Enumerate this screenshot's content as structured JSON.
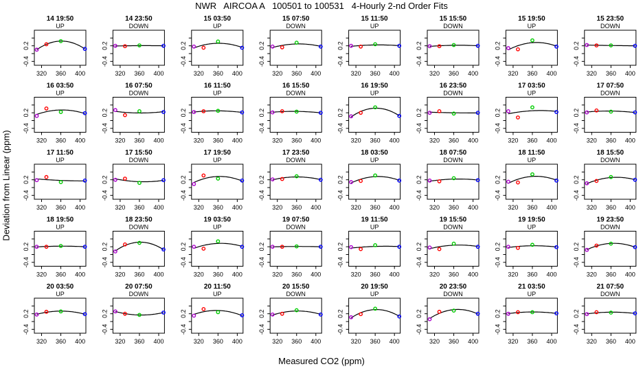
{
  "title": "NWR   AIRCOA A   100501 to 100531   4-Hourly 2-nd Order Fits",
  "xlabel": "Measured CO2 (ppm)",
  "ylabel": "Deviation from Linear (ppm)",
  "colors": {
    "low": "#ff0000",
    "mid": "#00cc00",
    "high": "#0000ff",
    "first": "#aa00cc",
    "curve": "#000000",
    "frame": "#000000"
  },
  "chart_data": {
    "type": "scatter",
    "grid": false,
    "layout": {
      "rows": 5,
      "cols": 8
    },
    "xlim": [
      305,
      412
    ],
    "ylim": [
      -0.5,
      0.4
    ],
    "xticks": [
      320,
      360,
      400
    ],
    "yticks": [
      -0.4,
      -0.2,
      0.0,
      0.2
    ],
    "xtick_labels": [
      "320",
      "360",
      "400"
    ],
    "ytick_labels": [
      "-0.4",
      "",
      "0.2"
    ],
    "standard_x": [
      310,
      330,
      360,
      410
    ],
    "panels": [
      {
        "title": "14 19:50",
        "mode": "UP",
        "y": [
          -0.1,
          0.04,
          0.12,
          -0.08
        ],
        "fit": [
          -0.5,
          0.1
        ]
      },
      {
        "title": "14 23:50",
        "mode": "DOWN",
        "y": [
          0.0,
          -0.01,
          0.01,
          0.0
        ],
        "fit": [
          0.0,
          0.0
        ]
      },
      {
        "title": "15 03:50",
        "mode": "UP",
        "y": [
          -0.02,
          -0.05,
          0.11,
          -0.05
        ],
        "fit": [
          -0.2,
          0.1
        ]
      },
      {
        "title": "15 07:50",
        "mode": "DOWN",
        "y": [
          -0.02,
          -0.04,
          0.08,
          -0.02
        ],
        "fit": [
          -0.2,
          0.1
        ]
      },
      {
        "title": "15 11:50",
        "mode": "UP",
        "y": [
          0.0,
          -0.02,
          0.04,
          0.0
        ],
        "fit": [
          0.0,
          0.0
        ]
      },
      {
        "title": "15 15:50",
        "mode": "DOWN",
        "y": [
          -0.01,
          -0.01,
          0.02,
          0.0
        ],
        "fit": [
          0.0,
          0.0
        ]
      },
      {
        "title": "15 19:50",
        "mode": "UP",
        "y": [
          -0.06,
          -0.09,
          0.14,
          -0.02
        ],
        "fit": [
          -0.2,
          0.2
        ]
      },
      {
        "title": "15 23:50",
        "mode": "DOWN",
        "y": [
          0.02,
          0.01,
          0.01,
          0.0
        ],
        "fit": [
          0.0,
          0.0
        ]
      },
      {
        "title": "16 03:50",
        "mode": "UP",
        "y": [
          -0.08,
          0.11,
          0.02,
          -0.01
        ],
        "fit": [
          -0.1,
          0.1
        ]
      },
      {
        "title": "16 07:50",
        "mode": "DOWN",
        "y": [
          0.07,
          -0.06,
          0.04,
          0.02
        ],
        "fit": [
          0.0,
          0.0
        ]
      },
      {
        "title": "16 11:50",
        "mode": "UP",
        "y": [
          0.02,
          0.04,
          0.05,
          0.01
        ],
        "fit": [
          0.0,
          0.0
        ]
      },
      {
        "title": "16 15:50",
        "mode": "DOWN",
        "y": [
          0.01,
          0.04,
          0.03,
          0.0
        ],
        "fit": [
          0.0,
          0.0
        ]
      },
      {
        "title": "16 19:50",
        "mode": "UP",
        "y": [
          -0.09,
          0.0,
          0.14,
          -0.08
        ],
        "fit": [
          -0.5,
          0.1
        ]
      },
      {
        "title": "16 23:50",
        "mode": "DOWN",
        "y": [
          0.0,
          0.04,
          -0.02,
          0.0
        ],
        "fit": [
          0.0,
          0.0
        ]
      },
      {
        "title": "17 03:50",
        "mode": "UP",
        "y": [
          0.04,
          -0.12,
          0.14,
          0.02
        ],
        "fit": [
          0.0,
          0.0
        ]
      },
      {
        "title": "17 07:50",
        "mode": "DOWN",
        "y": [
          0.01,
          0.06,
          0.03,
          0.01
        ],
        "fit": [
          0.0,
          0.0
        ]
      },
      {
        "title": "17 11:50",
        "mode": "UP",
        "y": [
          -0.01,
          0.07,
          -0.06,
          -0.02
        ],
        "fit": [
          0.0,
          0.0
        ]
      },
      {
        "title": "17 15:50",
        "mode": "DOWN",
        "y": [
          0.0,
          0.03,
          -0.08,
          -0.01
        ],
        "fit": [
          0.0,
          0.0
        ]
      },
      {
        "title": "17 19:50",
        "mode": "UP",
        "y": [
          -0.11,
          0.11,
          0.03,
          -0.02
        ],
        "fit": [
          -0.2,
          0.1
        ]
      },
      {
        "title": "17 23:50",
        "mode": "DOWN",
        "y": [
          0.01,
          0.02,
          0.09,
          0.0
        ],
        "fit": [
          -0.2,
          0.1
        ]
      },
      {
        "title": "18 03:50",
        "mode": "UP",
        "y": [
          -0.06,
          -0.03,
          0.11,
          -0.02
        ],
        "fit": [
          -0.2,
          0.1
        ]
      },
      {
        "title": "18 07:50",
        "mode": "DOWN",
        "y": [
          -0.02,
          -0.04,
          0.04,
          -0.01
        ],
        "fit": [
          0.0,
          0.0
        ]
      },
      {
        "title": "18 11:50",
        "mode": "UP",
        "y": [
          -0.05,
          -0.07,
          0.14,
          -0.02
        ],
        "fit": [
          -0.5,
          0.1
        ]
      },
      {
        "title": "18 15:50",
        "mode": "DOWN",
        "y": [
          -0.09,
          -0.03,
          0.07,
          0.0
        ],
        "fit": [
          -0.3,
          0.1
        ]
      },
      {
        "title": "18 19:50",
        "mode": "UP",
        "y": [
          0.0,
          0.0,
          0.02,
          0.0
        ],
        "fit": [
          0.0,
          0.0
        ]
      },
      {
        "title": "18 23:50",
        "mode": "DOWN",
        "y": [
          -0.12,
          0.06,
          0.1,
          -0.07
        ],
        "fit": [
          -0.5,
          0.1
        ]
      },
      {
        "title": "19 03:50",
        "mode": "UP",
        "y": [
          0.0,
          -0.05,
          0.14,
          0.0
        ],
        "fit": [
          -0.2,
          0.1
        ]
      },
      {
        "title": "19 07:50",
        "mode": "DOWN",
        "y": [
          0.0,
          0.0,
          0.01,
          0.0
        ],
        "fit": [
          0.0,
          0.0
        ]
      },
      {
        "title": "19 11:50",
        "mode": "UP",
        "y": [
          -0.01,
          -0.06,
          0.04,
          0.0
        ],
        "fit": [
          0.0,
          0.0
        ]
      },
      {
        "title": "19 15:50",
        "mode": "DOWN",
        "y": [
          -0.02,
          -0.06,
          0.08,
          0.0
        ],
        "fit": [
          0.0,
          0.0
        ]
      },
      {
        "title": "19 19:50",
        "mode": "UP",
        "y": [
          0.0,
          -0.03,
          0.05,
          -0.01
        ],
        "fit": [
          -0.2,
          0.1
        ]
      },
      {
        "title": "19 23:50",
        "mode": "DOWN",
        "y": [
          -0.08,
          0.03,
          0.08,
          -0.01
        ],
        "fit": [
          -0.2,
          0.1
        ]
      },
      {
        "title": "20 03:50",
        "mode": "UP",
        "y": [
          -0.02,
          0.05,
          0.06,
          -0.01
        ],
        "fit": [
          0.0,
          0.0
        ]
      },
      {
        "title": "20 07:50",
        "mode": "DOWN",
        "y": [
          0.06,
          0.0,
          -0.03,
          0.03
        ],
        "fit": [
          0.0,
          0.0
        ]
      },
      {
        "title": "20 11:50",
        "mode": "UP",
        "y": [
          -0.05,
          0.12,
          0.04,
          -0.04
        ],
        "fit": [
          -0.2,
          0.1
        ]
      },
      {
        "title": "20 15:50",
        "mode": "DOWN",
        "y": [
          -0.02,
          0.0,
          0.09,
          -0.02
        ],
        "fit": [
          -0.2,
          0.1
        ]
      },
      {
        "title": "20 19:50",
        "mode": "UP",
        "y": [
          -0.09,
          -0.01,
          0.13,
          -0.07
        ],
        "fit": [
          -0.5,
          0.1
        ]
      },
      {
        "title": "20 23:50",
        "mode": "DOWN",
        "y": [
          -0.14,
          0.05,
          0.08,
          0.0
        ],
        "fit": [
          -0.3,
          0.1
        ]
      },
      {
        "title": "21 03:50",
        "mode": "UP",
        "y": [
          0.0,
          0.04,
          0.04,
          0.01
        ],
        "fit": [
          0.0,
          0.0
        ]
      },
      {
        "title": "21 07:50",
        "mode": "DOWN",
        "y": [
          -0.01,
          0.04,
          0.03,
          0.01
        ],
        "fit": [
          0.0,
          0.0
        ]
      }
    ]
  }
}
